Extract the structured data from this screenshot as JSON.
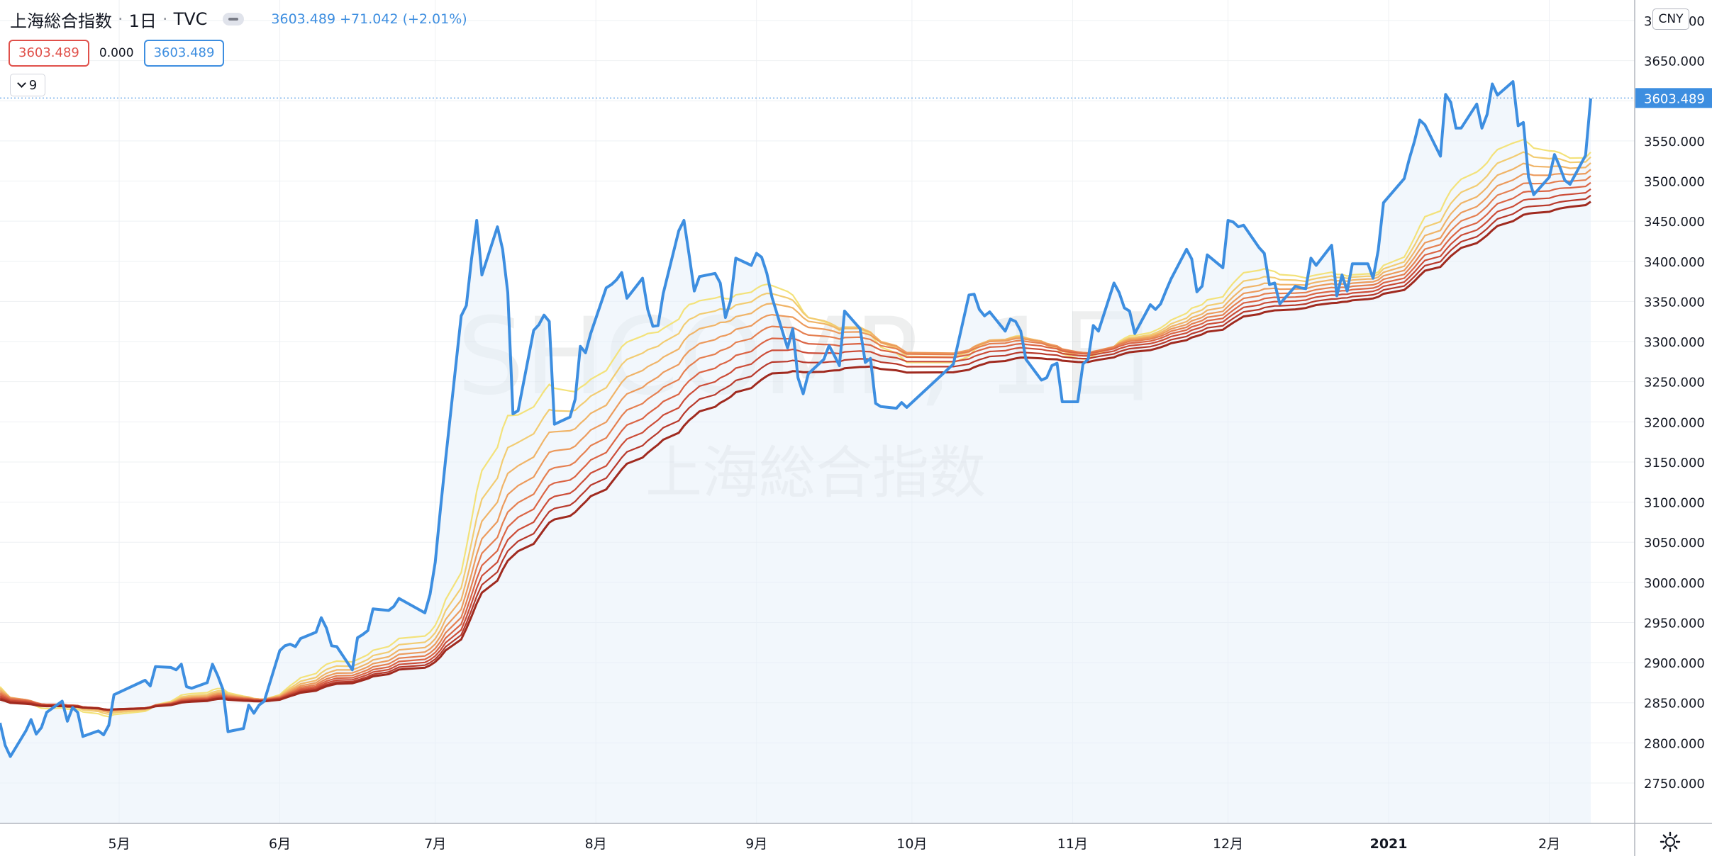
{
  "header": {
    "symbol_name": "上海総合指数",
    "interval": "1日",
    "exchange": "TVC",
    "last_price": "3603.489",
    "change": "+71.042",
    "change_pct": "(+2.01%)"
  },
  "indicator_values": {
    "value_a": "3603.489",
    "value_b": "0.000",
    "value_c": "3603.489"
  },
  "indicators_collapse": {
    "count": "9"
  },
  "currency": "CNY",
  "watermark": {
    "line1": "SHCOMP, 1日",
    "line2": "上海総合指数"
  },
  "colors": {
    "price_line": "#3d8ee0",
    "price_fill": "#e8f1fa",
    "ribbon": [
      "#f3e27a",
      "#f2cc72",
      "#f0b468",
      "#ec9a5c",
      "#e57f50",
      "#db6444",
      "#cc4c37",
      "#b8392b",
      "#a02a1f"
    ],
    "grid": "#eef0f3",
    "axis_text": "#131722",
    "last_price_label_bg": "#3d8ee0"
  },
  "chart_data": {
    "type": "line",
    "title": "上海総合指数",
    "ylim": [
      2700,
      3700
    ],
    "y_ticks": [
      "2750.000",
      "2800.000",
      "2850.000",
      "2900.000",
      "2950.000",
      "3000.000",
      "3050.000",
      "3100.000",
      "3150.000",
      "3200.000",
      "3250.000",
      "3300.000",
      "3350.000",
      "3400.000",
      "3450.000",
      "3500.000",
      "3550.000",
      "3600.000",
      "3650.000",
      "3700.000"
    ],
    "x_ticks": [
      {
        "label": "5月",
        "x": "2020-05-01"
      },
      {
        "label": "6月",
        "x": "2020-06-01"
      },
      {
        "label": "7月",
        "x": "2020-07-01"
      },
      {
        "label": "8月",
        "x": "2020-08-01"
      },
      {
        "label": "9月",
        "x": "2020-09-01"
      },
      {
        "label": "10月",
        "x": "2020-10-01"
      },
      {
        "label": "11月",
        "x": "2020-11-01"
      },
      {
        "label": "12月",
        "x": "2020-12-01"
      },
      {
        "label": "2021",
        "x": "2021-01-01"
      },
      {
        "label": "2月",
        "x": "2021-02-01"
      }
    ],
    "last_price_label": "3603.489",
    "grid": true,
    "series": [
      {
        "name": "SHCOMP",
        "points": [
          [
            "2020-04-08",
            2825
          ],
          [
            "2020-04-09",
            2797
          ],
          [
            "2020-04-10",
            2783
          ],
          [
            "2020-04-13",
            2815
          ],
          [
            "2020-04-14",
            2829
          ],
          [
            "2020-04-15",
            2811
          ],
          [
            "2020-04-16",
            2819
          ],
          [
            "2020-04-17",
            2838
          ],
          [
            "2020-04-20",
            2852
          ],
          [
            "2020-04-21",
            2827
          ],
          [
            "2020-04-22",
            2844
          ],
          [
            "2020-04-23",
            2838
          ],
          [
            "2020-04-24",
            2808
          ],
          [
            "2020-04-27",
            2815
          ],
          [
            "2020-04-28",
            2810
          ],
          [
            "2020-04-29",
            2822
          ],
          [
            "2020-04-30",
            2860
          ],
          [
            "2020-05-06",
            2878
          ],
          [
            "2020-05-07",
            2871
          ],
          [
            "2020-05-08",
            2895
          ],
          [
            "2020-05-11",
            2894
          ],
          [
            "2020-05-12",
            2891
          ],
          [
            "2020-05-13",
            2898
          ],
          [
            "2020-05-14",
            2870
          ],
          [
            "2020-05-15",
            2868
          ],
          [
            "2020-05-18",
            2875
          ],
          [
            "2020-05-19",
            2898
          ],
          [
            "2020-05-20",
            2884
          ],
          [
            "2020-05-21",
            2867
          ],
          [
            "2020-05-22",
            2814
          ],
          [
            "2020-05-25",
            2818
          ],
          [
            "2020-05-26",
            2847
          ],
          [
            "2020-05-27",
            2837
          ],
          [
            "2020-05-28",
            2847
          ],
          [
            "2020-05-29",
            2852
          ],
          [
            "2020-06-01",
            2915
          ],
          [
            "2020-06-02",
            2921
          ],
          [
            "2020-06-03",
            2923
          ],
          [
            "2020-06-04",
            2920
          ],
          [
            "2020-06-05",
            2930
          ],
          [
            "2020-06-08",
            2938
          ],
          [
            "2020-06-09",
            2956
          ],
          [
            "2020-06-10",
            2943
          ],
          [
            "2020-06-11",
            2921
          ],
          [
            "2020-06-12",
            2920
          ],
          [
            "2020-06-15",
            2891
          ],
          [
            "2020-06-16",
            2931
          ],
          [
            "2020-06-17",
            2935
          ],
          [
            "2020-06-18",
            2940
          ],
          [
            "2020-06-19",
            2967
          ],
          [
            "2020-06-22",
            2965
          ],
          [
            "2020-06-23",
            2970
          ],
          [
            "2020-06-24",
            2980
          ],
          [
            "2020-06-29",
            2962
          ],
          [
            "2020-06-30",
            2985
          ],
          [
            "2020-07-01",
            3025
          ],
          [
            "2020-07-02",
            3091
          ],
          [
            "2020-07-03",
            3153
          ],
          [
            "2020-07-06",
            3332
          ],
          [
            "2020-07-07",
            3345
          ],
          [
            "2020-07-08",
            3403
          ],
          [
            "2020-07-09",
            3451
          ],
          [
            "2020-07-10",
            3383
          ],
          [
            "2020-07-13",
            3443
          ],
          [
            "2020-07-14",
            3415
          ],
          [
            "2020-07-15",
            3361
          ],
          [
            "2020-07-16",
            3210
          ],
          [
            "2020-07-17",
            3214
          ],
          [
            "2020-07-20",
            3314
          ],
          [
            "2020-07-21",
            3321
          ],
          [
            "2020-07-22",
            3333
          ],
          [
            "2020-07-23",
            3325
          ],
          [
            "2020-07-24",
            3197
          ],
          [
            "2020-07-27",
            3206
          ],
          [
            "2020-07-28",
            3228
          ],
          [
            "2020-07-29",
            3294
          ],
          [
            "2020-07-30",
            3286
          ],
          [
            "2020-07-31",
            3310
          ],
          [
            "2020-08-03",
            3367
          ],
          [
            "2020-08-04",
            3371
          ],
          [
            "2020-08-05",
            3377
          ],
          [
            "2020-08-06",
            3386
          ],
          [
            "2020-08-07",
            3354
          ],
          [
            "2020-08-10",
            3379
          ],
          [
            "2020-08-11",
            3340
          ],
          [
            "2020-08-12",
            3319
          ],
          [
            "2020-08-13",
            3320
          ],
          [
            "2020-08-14",
            3360
          ],
          [
            "2020-08-17",
            3438
          ],
          [
            "2020-08-18",
            3451
          ],
          [
            "2020-08-19",
            3408
          ],
          [
            "2020-08-20",
            3363
          ],
          [
            "2020-08-21",
            3381
          ],
          [
            "2020-08-24",
            3385
          ],
          [
            "2020-08-25",
            3373
          ],
          [
            "2020-08-26",
            3330
          ],
          [
            "2020-08-27",
            3351
          ],
          [
            "2020-08-28",
            3404
          ],
          [
            "2020-08-31",
            3395
          ],
          [
            "2020-09-01",
            3410
          ],
          [
            "2020-09-02",
            3405
          ],
          [
            "2020-09-03",
            3385
          ],
          [
            "2020-09-04",
            3355
          ],
          [
            "2020-09-07",
            3292
          ],
          [
            "2020-09-08",
            3316
          ],
          [
            "2020-09-09",
            3255
          ],
          [
            "2020-09-10",
            3235
          ],
          [
            "2020-09-11",
            3260
          ],
          [
            "2020-09-14",
            3278
          ],
          [
            "2020-09-15",
            3295
          ],
          [
            "2020-09-16",
            3283
          ],
          [
            "2020-09-17",
            3270
          ],
          [
            "2020-09-18",
            3338
          ],
          [
            "2020-09-21",
            3316
          ],
          [
            "2020-09-22",
            3274
          ],
          [
            "2020-09-23",
            3279
          ],
          [
            "2020-09-24",
            3223
          ],
          [
            "2020-09-25",
            3219
          ],
          [
            "2020-09-28",
            3217
          ],
          [
            "2020-09-29",
            3224
          ],
          [
            "2020-09-30",
            3218
          ],
          [
            "2020-10-09",
            3272
          ],
          [
            "2020-10-12",
            3358
          ],
          [
            "2020-10-13",
            3359
          ],
          [
            "2020-10-14",
            3340
          ],
          [
            "2020-10-15",
            3332
          ],
          [
            "2020-10-16",
            3337
          ],
          [
            "2020-10-19",
            3313
          ],
          [
            "2020-10-20",
            3328
          ],
          [
            "2020-10-21",
            3325
          ],
          [
            "2020-10-22",
            3313
          ],
          [
            "2020-10-23",
            3278
          ],
          [
            "2020-10-26",
            3252
          ],
          [
            "2020-10-27",
            3255
          ],
          [
            "2020-10-28",
            3270
          ],
          [
            "2020-10-29",
            3273
          ],
          [
            "2020-10-30",
            3225
          ],
          [
            "2020-11-02",
            3225
          ],
          [
            "2020-11-03",
            3272
          ],
          [
            "2020-11-04",
            3278
          ],
          [
            "2020-11-05",
            3320
          ],
          [
            "2020-11-06",
            3313
          ],
          [
            "2020-11-09",
            3373
          ],
          [
            "2020-11-10",
            3361
          ],
          [
            "2020-11-11",
            3342
          ],
          [
            "2020-11-12",
            3338
          ],
          [
            "2020-11-13",
            3310
          ],
          [
            "2020-11-16",
            3346
          ],
          [
            "2020-11-17",
            3340
          ],
          [
            "2020-11-18",
            3347
          ],
          [
            "2020-11-19",
            3363
          ],
          [
            "2020-11-20",
            3378
          ],
          [
            "2020-11-23",
            3415
          ],
          [
            "2020-11-24",
            3403
          ],
          [
            "2020-11-25",
            3362
          ],
          [
            "2020-11-26",
            3369
          ],
          [
            "2020-11-27",
            3408
          ],
          [
            "2020-11-30",
            3392
          ],
          [
            "2020-12-01",
            3451
          ],
          [
            "2020-12-02",
            3449
          ],
          [
            "2020-12-03",
            3443
          ],
          [
            "2020-12-04",
            3445
          ],
          [
            "2020-12-07",
            3417
          ],
          [
            "2020-12-08",
            3410
          ],
          [
            "2020-12-09",
            3371
          ],
          [
            "2020-12-10",
            3373
          ],
          [
            "2020-12-11",
            3347
          ],
          [
            "2020-12-14",
            3369
          ],
          [
            "2020-12-15",
            3367
          ],
          [
            "2020-12-16",
            3366
          ],
          [
            "2020-12-17",
            3404
          ],
          [
            "2020-12-18",
            3395
          ],
          [
            "2020-12-21",
            3420
          ],
          [
            "2020-12-22",
            3357
          ],
          [
            "2020-12-23",
            3383
          ],
          [
            "2020-12-24",
            3363
          ],
          [
            "2020-12-25",
            3397
          ],
          [
            "2020-12-28",
            3397
          ],
          [
            "2020-12-29",
            3379
          ],
          [
            "2020-12-30",
            3414
          ],
          [
            "2020-12-31",
            3473
          ],
          [
            "2021-01-04",
            3503
          ],
          [
            "2021-01-05",
            3528
          ],
          [
            "2021-01-06",
            3550
          ],
          [
            "2021-01-07",
            3576
          ],
          [
            "2021-01-08",
            3570
          ],
          [
            "2021-01-11",
            3531
          ],
          [
            "2021-01-12",
            3608
          ],
          [
            "2021-01-13",
            3598
          ],
          [
            "2021-01-14",
            3566
          ],
          [
            "2021-01-15",
            3566
          ],
          [
            "2021-01-18",
            3596
          ],
          [
            "2021-01-19",
            3566
          ],
          [
            "2021-01-20",
            3583
          ],
          [
            "2021-01-21",
            3621
          ],
          [
            "2021-01-22",
            3607
          ],
          [
            "2021-01-25",
            3624
          ],
          [
            "2021-01-26",
            3569
          ],
          [
            "2021-01-27",
            3573
          ],
          [
            "2021-01-28",
            3505
          ],
          [
            "2021-01-29",
            3483
          ],
          [
            "2021-02-01",
            3505
          ],
          [
            "2021-02-02",
            3533
          ],
          [
            "2021-02-03",
            3518
          ],
          [
            "2021-02-04",
            3501
          ],
          [
            "2021-02-05",
            3496
          ],
          [
            "2021-02-08",
            3532
          ],
          [
            "2021-02-09",
            3603
          ]
        ]
      }
    ],
    "ribbon": {
      "type": "moving-average ribbon",
      "line_count": 9,
      "note_visible": false
    }
  }
}
